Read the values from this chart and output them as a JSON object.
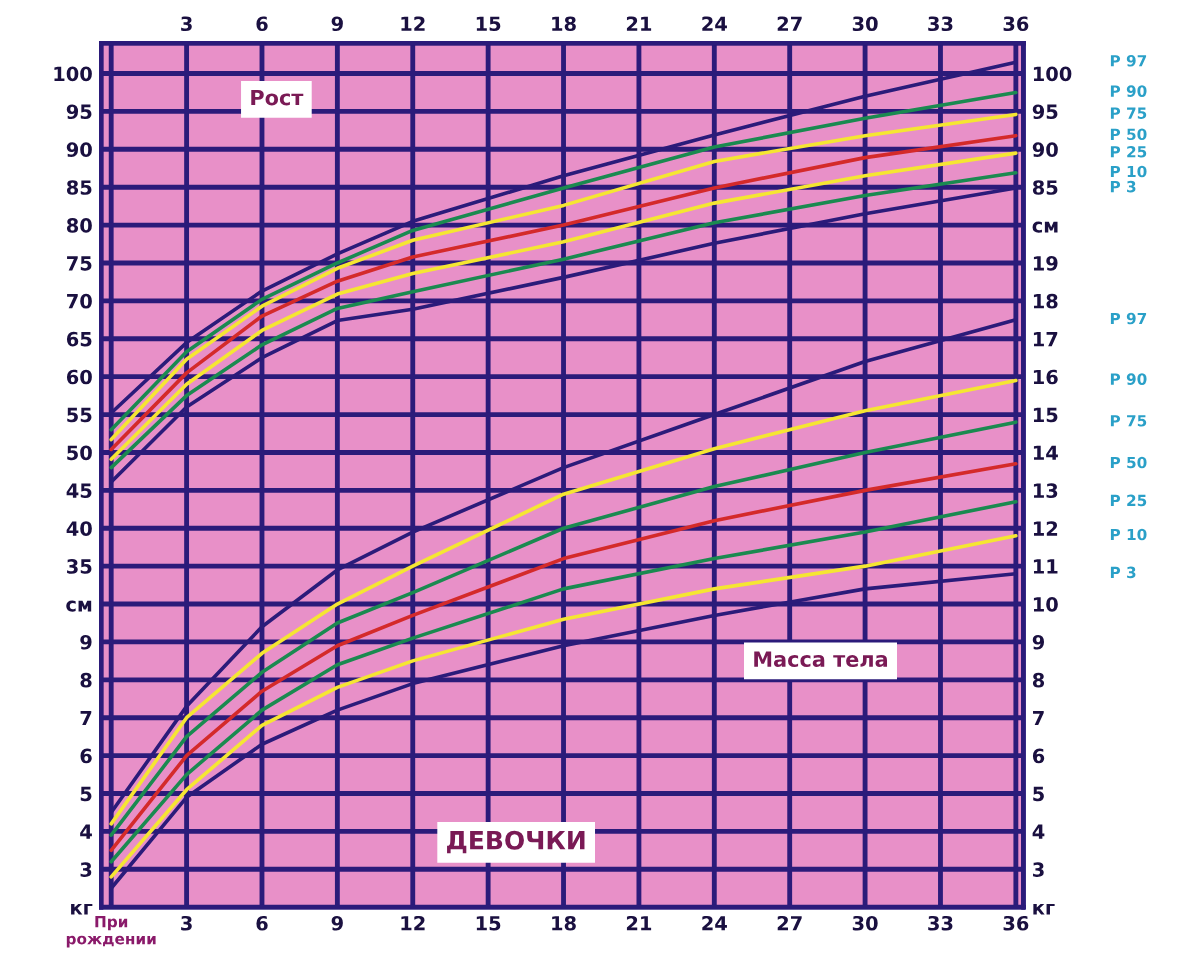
{
  "chart_data": [
    {
      "type": "line",
      "annotations": [
        "Рост"
      ],
      "x": [
        0,
        3,
        6,
        9,
        12,
        18,
        24,
        30,
        36
      ],
      "xlim": [
        -0.4,
        36.3
      ],
      "xticks": [
        {
          "value": 0,
          "label": "При\nрождении"
        },
        3,
        6,
        9,
        12,
        15,
        18,
        21,
        24,
        27,
        30,
        33,
        36
      ],
      "x2lim": [
        -0.4,
        36.3
      ],
      "x2ticks": [
        3,
        6,
        9,
        12,
        15,
        18,
        21,
        24,
        27,
        30,
        33,
        36
      ],
      "ylim": [
        -10,
        104
      ],
      "yticks": [
        {
          "value": 30,
          "label": "см"
        },
        35,
        40,
        45,
        50,
        55,
        60,
        65,
        70,
        75,
        80,
        85,
        90,
        95,
        100
      ],
      "y2lim": [
        -10,
        104
      ],
      "y2ticks": [
        {
          "value": 80,
          "label": "см"
        },
        85,
        90,
        95,
        100
      ],
      "grid": true,
      "series": [
        {
          "name": "P 97",
          "color": "#2b1b7a",
          "values": [
            55.2,
            64.5,
            71.3,
            76.2,
            80.5,
            86.5,
            91.9,
            97.0,
            101.5
          ]
        },
        {
          "name": "P 90",
          "color": "#1a8a50",
          "values": [
            53.0,
            63.3,
            70.2,
            75.0,
            79.3,
            84.9,
            90.3,
            94.1,
            97.5
          ]
        },
        {
          "name": "P 75",
          "color": "#f5e632",
          "values": [
            51.7,
            62.3,
            69.3,
            74.3,
            78.0,
            82.6,
            88.4,
            91.8,
            94.6
          ]
        },
        {
          "name": "P 50",
          "color": "#d42a2a",
          "values": [
            50.4,
            60.5,
            68.0,
            72.6,
            75.8,
            80.0,
            84.9,
            88.9,
            91.8
          ]
        },
        {
          "name": "P 25",
          "color": "#f5e632",
          "values": [
            49.1,
            59.0,
            66.1,
            70.9,
            73.6,
            77.8,
            82.9,
            86.5,
            89.5
          ]
        },
        {
          "name": "P 10",
          "color": "#1a8a50",
          "values": [
            48.0,
            57.5,
            64.2,
            69.0,
            71.2,
            75.5,
            80.3,
            83.9,
            86.9
          ]
        },
        {
          "name": "P 3",
          "color": "#2b1b7a",
          "values": [
            46.1,
            56.0,
            62.5,
            67.4,
            68.9,
            73.1,
            77.6,
            81.5,
            84.9
          ]
        }
      ]
    },
    {
      "type": "line",
      "annotations": [
        "Масса тела",
        "ДЕВОЧКИ"
      ],
      "x": [
        0,
        3,
        6,
        9,
        12,
        18,
        24,
        30,
        36
      ],
      "xlim": [
        -0.4,
        36.3
      ],
      "tick_labels": "y",
      "ylim": [
        2,
        24.8
      ],
      "yticks": [
        {
          "value": 2,
          "label": "кг"
        },
        3,
        4,
        5,
        6,
        7,
        8,
        9
      ],
      "y2lim": [
        2,
        24.8
      ],
      "y2ticks": [
        {
          "value": 2,
          "label": "кг"
        },
        3,
        4,
        5,
        6,
        7,
        8,
        9,
        10,
        11,
        12,
        13,
        14,
        15,
        16,
        17,
        18,
        19
      ],
      "grid": "y",
      "series": [
        {
          "name": "P 97",
          "color": "#2b1b7a",
          "values": [
            4.5,
            7.3,
            9.4,
            10.9,
            11.9,
            13.6,
            15.0,
            16.4,
            17.5
          ]
        },
        {
          "name": "P 90",
          "color": "#f5e632",
          "values": [
            4.2,
            7.0,
            8.7,
            10.0,
            11.0,
            12.9,
            14.1,
            15.1,
            15.9
          ]
        },
        {
          "name": "P 75",
          "color": "#1a8a50",
          "values": [
            3.9,
            6.5,
            8.2,
            9.5,
            10.3,
            12.0,
            13.1,
            14.0,
            14.8
          ]
        },
        {
          "name": "P 50",
          "color": "#d42a2a",
          "values": [
            3.5,
            6.0,
            7.7,
            8.9,
            9.7,
            11.2,
            12.2,
            13.0,
            13.7
          ]
        },
        {
          "name": "P 25",
          "color": "#1a8a50",
          "values": [
            3.2,
            5.5,
            7.2,
            8.4,
            9.1,
            10.4,
            11.2,
            11.9,
            12.7
          ]
        },
        {
          "name": "P 10",
          "color": "#f5e632",
          "values": [
            2.8,
            5.1,
            6.8,
            7.8,
            8.5,
            9.6,
            10.4,
            11.0,
            11.8
          ]
        },
        {
          "name": "P 3",
          "color": "#2b1b7a",
          "values": [
            2.5,
            4.9,
            6.3,
            7.2,
            7.9,
            8.9,
            9.7,
            10.4,
            10.8
          ]
        }
      ]
    }
  ]
}
